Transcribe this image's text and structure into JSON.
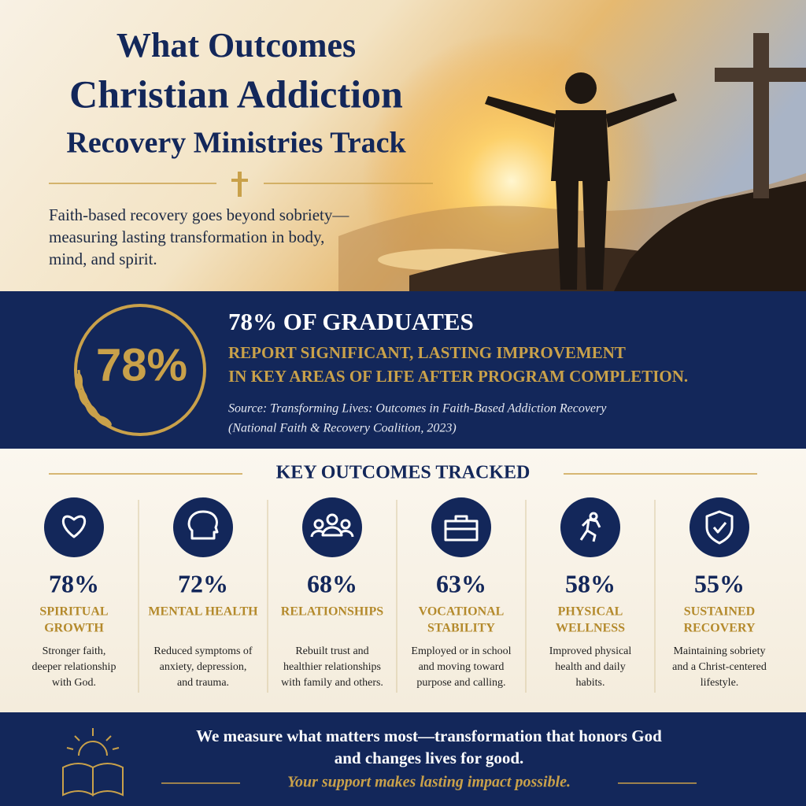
{
  "header": {
    "title_lines": [
      "What Outcomes",
      "Christian Addiction",
      "Recovery Ministries Track"
    ],
    "subtitle_lines": [
      "Faith-based recovery goes beyond sobriety—",
      "measuring lasting transformation in body,",
      "mind, and spirit."
    ]
  },
  "highlight": {
    "badge": "78%",
    "headline": "78% OF GRADUATES",
    "detail_lines": [
      "REPORT SIGNIFICANT, LASTING IMPROVEMENT",
      "IN KEY AREAS OF LIFE AFTER PROGRAM COMPLETION."
    ],
    "source_lines": [
      "Source: Transforming Lives: Outcomes in Faith-Based Addiction Recovery",
      "(National Faith & Recovery Coalition, 2023)"
    ]
  },
  "outcomes": {
    "title": "KEY OUTCOMES TRACKED",
    "items": [
      {
        "percent": "78%",
        "label_lines": [
          "SPIRITUAL",
          "GROWTH"
        ],
        "description_lines": [
          "Stronger faith,",
          "deeper relationship",
          "with God."
        ]
      },
      {
        "percent": "72%",
        "label_lines": [
          "MENTAL HEALTH"
        ],
        "description_lines": [
          "Reduced symptoms of",
          "anxiety, depression,",
          "and trauma."
        ]
      },
      {
        "percent": "68%",
        "label_lines": [
          "RELATIONSHIPS"
        ],
        "description_lines": [
          "Rebuilt trust and",
          "healthier relationships",
          "with family and others."
        ]
      },
      {
        "percent": "63%",
        "label_lines": [
          "VOCATIONAL",
          "STABILITY"
        ],
        "description_lines": [
          "Employed or in school",
          "and moving toward",
          "purpose and calling."
        ]
      },
      {
        "percent": "58%",
        "label_lines": [
          "PHYSICAL",
          "WELLNESS"
        ],
        "description_lines": [
          "Improved physical",
          "health and daily",
          "habits."
        ]
      },
      {
        "percent": "55%",
        "label_lines": [
          "SUSTAINED",
          "RECOVERY"
        ],
        "description_lines": [
          "Maintaining sobriety",
          "and a Christ-centered",
          "lifestyle."
        ]
      }
    ]
  },
  "footer": {
    "message_lines": [
      "We measure what matters most—transformation that honors God",
      "and changes lives for good."
    ],
    "tagline": "Your support makes lasting impact possible."
  }
}
